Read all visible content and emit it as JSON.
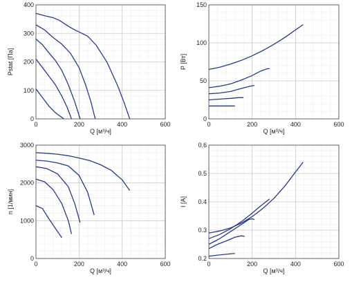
{
  "chart_data": [
    {
      "id": "pstat",
      "type": "line",
      "xlabel": "Q [м³/ч]",
      "ylabel": "Pstat [Па]",
      "xlim": [
        0,
        600
      ],
      "ylim": [
        0,
        400
      ],
      "xticks": [
        0,
        200,
        400,
        600
      ],
      "yticks": [
        0,
        100,
        200,
        300,
        400
      ],
      "series": [
        {
          "x": [
            0,
            40,
            80,
            110,
            150,
            180,
            200,
            240,
            280,
            330,
            380,
            410,
            435
          ],
          "y": [
            370,
            362,
            355,
            345,
            325,
            312,
            305,
            290,
            258,
            198,
            115,
            55,
            0
          ]
        },
        {
          "x": [
            0,
            40,
            80,
            120,
            160,
            200,
            230,
            255,
            275
          ],
          "y": [
            330,
            312,
            285,
            262,
            230,
            180,
            120,
            60,
            0
          ]
        },
        {
          "x": [
            0,
            30,
            60,
            90,
            120,
            150,
            180,
            205
          ],
          "y": [
            280,
            260,
            232,
            205,
            170,
            120,
            60,
            0
          ]
        },
        {
          "x": [
            0,
            30,
            60,
            90,
            120,
            145,
            165
          ],
          "y": [
            210,
            180,
            150,
            120,
            80,
            40,
            0
          ]
        },
        {
          "x": [
            0,
            30,
            60,
            90,
            115,
            130
          ],
          "y": [
            105,
            75,
            45,
            22,
            8,
            0
          ]
        }
      ]
    },
    {
      "id": "power",
      "type": "line",
      "xlabel": "Q [м³/ч]",
      "ylabel": "P [Вт]",
      "xlim": [
        0,
        600
      ],
      "ylim": [
        0,
        150
      ],
      "xticks": [
        0,
        200,
        400,
        600
      ],
      "yticks": [
        0,
        50,
        100,
        150
      ],
      "series": [
        {
          "x": [
            0,
            50,
            100,
            150,
            200,
            250,
            300,
            350,
            400,
            435
          ],
          "y": [
            65,
            68,
            72,
            77,
            83,
            90,
            98,
            107,
            117,
            124
          ]
        },
        {
          "x": [
            0,
            50,
            100,
            150,
            200,
            240,
            270,
            280
          ],
          "y": [
            41,
            43,
            46,
            51,
            57,
            63,
            66,
            66
          ]
        },
        {
          "x": [
            0,
            50,
            100,
            150,
            190,
            210
          ],
          "y": [
            33,
            34,
            36,
            40,
            43,
            44
          ]
        },
        {
          "x": [
            0,
            50,
            100,
            140,
            160
          ],
          "y": [
            25,
            26,
            27,
            28,
            28
          ]
        },
        {
          "x": [
            0,
            40,
            80,
            120
          ],
          "y": [
            17,
            17,
            17,
            17
          ]
        }
      ]
    },
    {
      "id": "speed",
      "type": "line",
      "xlabel": "Q [м³/ч]",
      "ylabel": "n [1/мин]",
      "xlim": [
        0,
        600
      ],
      "ylim": [
        0,
        3000
      ],
      "xticks": [
        0,
        200,
        400,
        600
      ],
      "yticks": [
        0,
        1000,
        2000,
        3000
      ],
      "series": [
        {
          "x": [
            0,
            50,
            100,
            150,
            200,
            250,
            300,
            350,
            400,
            435
          ],
          "y": [
            2800,
            2785,
            2760,
            2720,
            2660,
            2590,
            2480,
            2330,
            2080,
            1800
          ]
        },
        {
          "x": [
            0,
            50,
            100,
            150,
            200,
            240,
            270
          ],
          "y": [
            2600,
            2580,
            2530,
            2450,
            2200,
            1750,
            1150
          ]
        },
        {
          "x": [
            0,
            50,
            100,
            150,
            180,
            205
          ],
          "y": [
            2430,
            2380,
            2240,
            1900,
            1450,
            950
          ]
        },
        {
          "x": [
            0,
            40,
            80,
            120,
            150,
            165
          ],
          "y": [
            2100,
            2030,
            1820,
            1450,
            1000,
            650
          ]
        },
        {
          "x": [
            0,
            30,
            60,
            90,
            120
          ],
          "y": [
            1400,
            1320,
            1050,
            800,
            550
          ]
        }
      ]
    },
    {
      "id": "current",
      "type": "line",
      "xlabel": "Q [м³/ч]",
      "ylabel": "I [A]",
      "xlim": [
        0,
        600
      ],
      "ylim": [
        0.2,
        0.6
      ],
      "xticks": [
        0,
        200,
        400,
        600
      ],
      "yticks": [
        0.2,
        0.3,
        0.4,
        0.5,
        0.6
      ],
      "series": [
        {
          "x": [
            0,
            50,
            100,
            150,
            200,
            250,
            300,
            350,
            400,
            435
          ],
          "y": [
            0.29,
            0.297,
            0.308,
            0.325,
            0.348,
            0.377,
            0.412,
            0.455,
            0.505,
            0.54
          ]
        },
        {
          "x": [
            0,
            50,
            100,
            150,
            200,
            230,
            260,
            280
          ],
          "y": [
            0.27,
            0.285,
            0.305,
            0.33,
            0.36,
            0.38,
            0.398,
            0.41
          ]
        },
        {
          "x": [
            0,
            50,
            100,
            150,
            185,
            200,
            210
          ],
          "y": [
            0.25,
            0.27,
            0.295,
            0.32,
            0.338,
            0.34,
            0.338
          ]
        },
        {
          "x": [
            0,
            40,
            80,
            120,
            150,
            165
          ],
          "y": [
            0.235,
            0.25,
            0.262,
            0.275,
            0.28,
            0.278
          ]
        },
        {
          "x": [
            0,
            40,
            80,
            120
          ],
          "y": [
            0.208,
            0.212,
            0.215,
            0.218
          ]
        }
      ]
    }
  ]
}
